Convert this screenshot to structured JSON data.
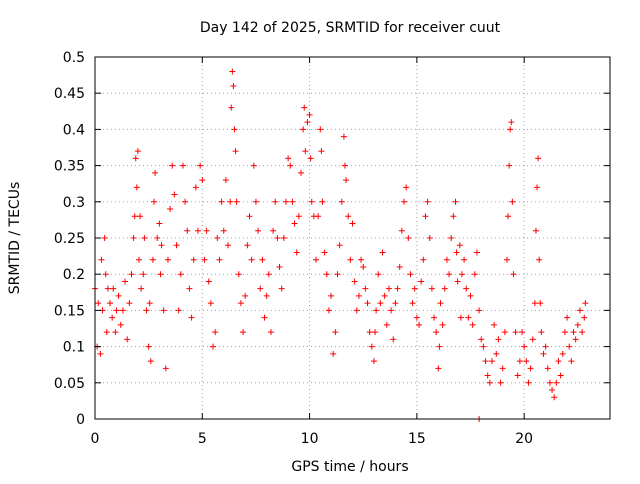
{
  "chart_data": {
    "type": "scatter",
    "title": "Day 142 of 2025, SRMTID for receiver cuut",
    "xlabel": "GPS time / hours",
    "ylabel": "SRMTID / TECUs",
    "xlim": [
      0,
      24
    ],
    "ylim": [
      0,
      0.5
    ],
    "x_ticks": [
      0,
      5,
      10,
      15,
      20
    ],
    "x_tick_labels": [
      "0",
      "5",
      "10",
      "15",
      "20"
    ],
    "y_ticks": [
      0,
      0.05,
      0.1,
      0.15,
      0.2,
      0.25,
      0.3,
      0.35,
      0.4,
      0.45,
      0.5
    ],
    "y_tick_labels": [
      "0",
      "0.05",
      "0.1",
      "0.15",
      "0.2",
      "0.25",
      "0.3",
      "0.35",
      "0.4",
      "0.45",
      "0.5"
    ],
    "grid": true,
    "marker": "+",
    "marker_color": "#ff0000",
    "series": [
      {
        "points": [
          [
            0.0,
            0.18
          ],
          [
            0.1,
            0.1
          ],
          [
            0.15,
            0.16
          ],
          [
            0.25,
            0.09
          ],
          [
            0.3,
            0.22
          ],
          [
            0.35,
            0.15
          ],
          [
            0.45,
            0.25
          ],
          [
            0.5,
            0.2
          ],
          [
            0.55,
            0.12
          ],
          [
            0.6,
            0.18
          ],
          [
            0.7,
            0.16
          ],
          [
            0.8,
            0.14
          ],
          [
            0.85,
            0.18
          ],
          [
            0.95,
            0.12
          ],
          [
            1.0,
            0.15
          ],
          [
            1.1,
            0.17
          ],
          [
            1.2,
            0.13
          ],
          [
            1.3,
            0.15
          ],
          [
            1.4,
            0.19
          ],
          [
            1.5,
            0.11
          ],
          [
            1.6,
            0.16
          ],
          [
            1.7,
            0.2
          ],
          [
            1.8,
            0.25
          ],
          [
            1.85,
            0.28
          ],
          [
            1.9,
            0.36
          ],
          [
            1.95,
            0.32
          ],
          [
            2.0,
            0.37
          ],
          [
            2.05,
            0.22
          ],
          [
            2.1,
            0.28
          ],
          [
            2.15,
            0.18
          ],
          [
            2.25,
            0.2
          ],
          [
            2.3,
            0.25
          ],
          [
            2.4,
            0.15
          ],
          [
            2.5,
            0.1
          ],
          [
            2.55,
            0.16
          ],
          [
            2.6,
            0.08
          ],
          [
            2.7,
            0.22
          ],
          [
            2.75,
            0.3
          ],
          [
            2.8,
            0.34
          ],
          [
            2.9,
            0.25
          ],
          [
            3.0,
            0.27
          ],
          [
            3.05,
            0.2
          ],
          [
            3.1,
            0.24
          ],
          [
            3.2,
            0.15
          ],
          [
            3.3,
            0.07
          ],
          [
            3.4,
            0.22
          ],
          [
            3.5,
            0.29
          ],
          [
            3.6,
            0.35
          ],
          [
            3.7,
            0.31
          ],
          [
            3.8,
            0.24
          ],
          [
            3.9,
            0.15
          ],
          [
            4.0,
            0.2
          ],
          [
            4.1,
            0.35
          ],
          [
            4.2,
            0.3
          ],
          [
            4.3,
            0.26
          ],
          [
            4.4,
            0.18
          ],
          [
            4.5,
            0.14
          ],
          [
            4.6,
            0.22
          ],
          [
            4.7,
            0.32
          ],
          [
            4.8,
            0.26
          ],
          [
            4.9,
            0.35
          ],
          [
            5.0,
            0.33
          ],
          [
            5.1,
            0.22
          ],
          [
            5.2,
            0.26
          ],
          [
            5.3,
            0.19
          ],
          [
            5.4,
            0.16
          ],
          [
            5.5,
            0.1
          ],
          [
            5.6,
            0.12
          ],
          [
            5.7,
            0.25
          ],
          [
            5.8,
            0.22
          ],
          [
            5.9,
            0.3
          ],
          [
            6.0,
            0.26
          ],
          [
            6.1,
            0.33
          ],
          [
            6.2,
            0.24
          ],
          [
            6.3,
            0.3
          ],
          [
            6.35,
            0.43
          ],
          [
            6.4,
            0.48
          ],
          [
            6.45,
            0.46
          ],
          [
            6.5,
            0.4
          ],
          [
            6.55,
            0.37
          ],
          [
            6.6,
            0.3
          ],
          [
            6.7,
            0.2
          ],
          [
            6.8,
            0.16
          ],
          [
            6.9,
            0.12
          ],
          [
            7.0,
            0.17
          ],
          [
            7.1,
            0.24
          ],
          [
            7.2,
            0.28
          ],
          [
            7.3,
            0.22
          ],
          [
            7.4,
            0.35
          ],
          [
            7.5,
            0.3
          ],
          [
            7.6,
            0.26
          ],
          [
            7.7,
            0.18
          ],
          [
            7.8,
            0.22
          ],
          [
            7.9,
            0.14
          ],
          [
            8.0,
            0.17
          ],
          [
            8.1,
            0.2
          ],
          [
            8.2,
            0.12
          ],
          [
            8.3,
            0.26
          ],
          [
            8.4,
            0.3
          ],
          [
            8.5,
            0.25
          ],
          [
            8.6,
            0.21
          ],
          [
            8.7,
            0.18
          ],
          [
            8.8,
            0.25
          ],
          [
            8.9,
            0.3
          ],
          [
            9.0,
            0.36
          ],
          [
            9.1,
            0.35
          ],
          [
            9.2,
            0.3
          ],
          [
            9.3,
            0.27
          ],
          [
            9.4,
            0.23
          ],
          [
            9.5,
            0.28
          ],
          [
            9.6,
            0.34
          ],
          [
            9.7,
            0.4
          ],
          [
            9.75,
            0.43
          ],
          [
            9.8,
            0.37
          ],
          [
            9.9,
            0.41
          ],
          [
            10.0,
            0.42
          ],
          [
            10.05,
            0.36
          ],
          [
            10.1,
            0.3
          ],
          [
            10.2,
            0.28
          ],
          [
            10.3,
            0.22
          ],
          [
            10.4,
            0.28
          ],
          [
            10.5,
            0.4
          ],
          [
            10.55,
            0.37
          ],
          [
            10.6,
            0.3
          ],
          [
            10.7,
            0.23
          ],
          [
            10.8,
            0.2
          ],
          [
            10.9,
            0.15
          ],
          [
            11.0,
            0.17
          ],
          [
            11.1,
            0.09
          ],
          [
            11.2,
            0.12
          ],
          [
            11.3,
            0.2
          ],
          [
            11.4,
            0.24
          ],
          [
            11.5,
            0.3
          ],
          [
            11.6,
            0.39
          ],
          [
            11.65,
            0.35
          ],
          [
            11.7,
            0.33
          ],
          [
            11.8,
            0.28
          ],
          [
            11.9,
            0.22
          ],
          [
            12.0,
            0.27
          ],
          [
            12.1,
            0.19
          ],
          [
            12.2,
            0.15
          ],
          [
            12.3,
            0.17
          ],
          [
            12.4,
            0.22
          ],
          [
            12.5,
            0.21
          ],
          [
            12.6,
            0.18
          ],
          [
            12.7,
            0.16
          ],
          [
            12.8,
            0.12
          ],
          [
            12.9,
            0.1
          ],
          [
            13.0,
            0.08
          ],
          [
            13.05,
            0.12
          ],
          [
            13.1,
            0.15
          ],
          [
            13.2,
            0.2
          ],
          [
            13.3,
            0.16
          ],
          [
            13.4,
            0.23
          ],
          [
            13.5,
            0.17
          ],
          [
            13.6,
            0.13
          ],
          [
            13.7,
            0.18
          ],
          [
            13.8,
            0.15
          ],
          [
            13.9,
            0.11
          ],
          [
            14.0,
            0.16
          ],
          [
            14.1,
            0.18
          ],
          [
            14.2,
            0.21
          ],
          [
            14.3,
            0.26
          ],
          [
            14.4,
            0.3
          ],
          [
            14.5,
            0.32
          ],
          [
            14.6,
            0.25
          ],
          [
            14.7,
            0.2
          ],
          [
            14.8,
            0.16
          ],
          [
            14.9,
            0.18
          ],
          [
            15.0,
            0.14
          ],
          [
            15.1,
            0.13
          ],
          [
            15.2,
            0.19
          ],
          [
            15.3,
            0.22
          ],
          [
            15.4,
            0.28
          ],
          [
            15.5,
            0.3
          ],
          [
            15.6,
            0.25
          ],
          [
            15.7,
            0.18
          ],
          [
            15.8,
            0.14
          ],
          [
            15.9,
            0.12
          ],
          [
            16.0,
            0.07
          ],
          [
            16.05,
            0.1
          ],
          [
            16.1,
            0.16
          ],
          [
            16.2,
            0.13
          ],
          [
            16.3,
            0.18
          ],
          [
            16.4,
            0.22
          ],
          [
            16.5,
            0.2
          ],
          [
            16.6,
            0.25
          ],
          [
            16.7,
            0.28
          ],
          [
            16.8,
            0.3
          ],
          [
            16.85,
            0.23
          ],
          [
            16.9,
            0.19
          ],
          [
            17.0,
            0.24
          ],
          [
            17.05,
            0.14
          ],
          [
            17.1,
            0.2
          ],
          [
            17.2,
            0.22
          ],
          [
            17.3,
            0.18
          ],
          [
            17.4,
            0.14
          ],
          [
            17.5,
            0.17
          ],
          [
            17.6,
            0.13
          ],
          [
            17.7,
            0.2
          ],
          [
            17.8,
            0.23
          ],
          [
            17.9,
            0.15
          ],
          [
            18.0,
            0.11
          ],
          [
            18.1,
            0.1
          ],
          [
            18.2,
            0.08
          ],
          [
            18.3,
            0.06
          ],
          [
            18.4,
            0.05
          ],
          [
            18.5,
            0.08
          ],
          [
            18.6,
            0.13
          ],
          [
            18.7,
            0.09
          ],
          [
            18.8,
            0.11
          ],
          [
            18.9,
            0.05
          ],
          [
            19.0,
            0.07
          ],
          [
            19.1,
            0.12
          ],
          [
            19.2,
            0.22
          ],
          [
            19.25,
            0.28
          ],
          [
            19.3,
            0.35
          ],
          [
            19.35,
            0.4
          ],
          [
            19.4,
            0.41
          ],
          [
            19.45,
            0.3
          ],
          [
            19.5,
            0.2
          ],
          [
            19.6,
            0.12
          ],
          [
            19.7,
            0.06
          ],
          [
            19.8,
            0.08
          ],
          [
            19.9,
            0.12
          ],
          [
            20.0,
            0.1
          ],
          [
            20.1,
            0.08
          ],
          [
            20.2,
            0.05
          ],
          [
            20.3,
            0.07
          ],
          [
            20.4,
            0.11
          ],
          [
            20.5,
            0.16
          ],
          [
            20.55,
            0.26
          ],
          [
            20.6,
            0.32
          ],
          [
            20.65,
            0.36
          ],
          [
            20.7,
            0.22
          ],
          [
            20.75,
            0.16
          ],
          [
            20.8,
            0.12
          ],
          [
            20.9,
            0.09
          ],
          [
            21.0,
            0.1
          ],
          [
            21.1,
            0.07
          ],
          [
            21.2,
            0.05
          ],
          [
            21.3,
            0.04
          ],
          [
            21.4,
            0.03
          ],
          [
            21.5,
            0.05
          ],
          [
            21.6,
            0.08
          ],
          [
            21.7,
            0.06
          ],
          [
            21.8,
            0.09
          ],
          [
            21.9,
            0.12
          ],
          [
            22.0,
            0.14
          ],
          [
            22.1,
            0.1
          ],
          [
            22.2,
            0.08
          ],
          [
            22.3,
            0.12
          ],
          [
            22.4,
            0.11
          ],
          [
            22.5,
            0.13
          ],
          [
            22.6,
            0.15
          ],
          [
            22.7,
            0.12
          ],
          [
            22.8,
            0.14
          ],
          [
            22.85,
            0.16
          ],
          [
            17.9,
            0.0
          ]
        ]
      }
    ]
  }
}
